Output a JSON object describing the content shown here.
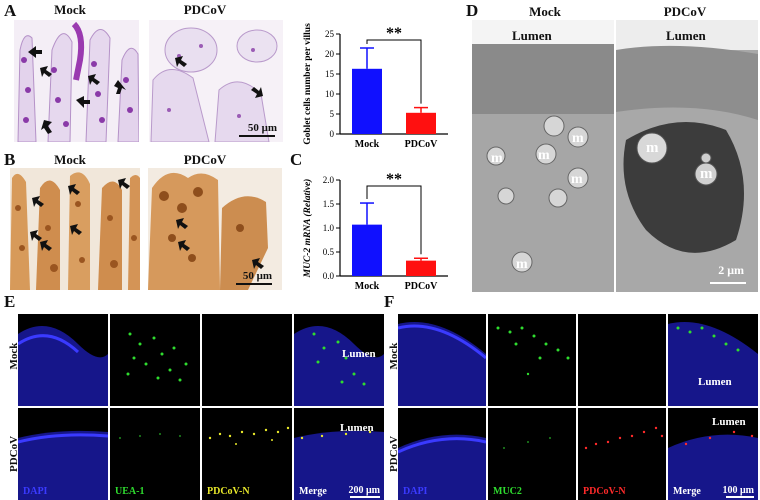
{
  "panels": {
    "A": {
      "label": "A",
      "headers": [
        "Mock",
        "PDCoV"
      ],
      "scale_bar": "50 μm"
    },
    "A_chart": {
      "ylabel": "Goblet cells number per villus",
      "significance": "**"
    },
    "B": {
      "label": "B",
      "headers": [
        "Mock",
        "PDCoV"
      ],
      "scale_bar": "50 μm"
    },
    "C": {
      "label": "C",
      "ylabel": "MUC-2 mRNA (Relative)",
      "significance": "**"
    },
    "D": {
      "label": "D",
      "headers": [
        "Mock",
        "PDCoV"
      ],
      "lumen": "Lumen",
      "m_label": "m",
      "scale_bar": "2 μm"
    },
    "E": {
      "label": "E",
      "rows": [
        "Mock",
        "PDCoV"
      ],
      "channels": [
        "DAPI",
        "UEA-1",
        "PDCoV-N",
        "Merge"
      ],
      "lumen": "Lumen",
      "scale_bar": "200 μm"
    },
    "F": {
      "label": "F",
      "rows": [
        "Mock",
        "PDCoV"
      ],
      "channels": [
        "DAPI",
        "MUC2",
        "PDCoV-N",
        "Merge"
      ],
      "lumen": "Lumen",
      "scale_bar": "100 μm"
    }
  },
  "colors": {
    "mock_bar": "#1010ff",
    "pdcov_bar": "#ff1010",
    "dapi": "#3a3aff",
    "green": "#2fdc2f",
    "yellow": "#e8e82a",
    "red": "#ff2a2a"
  },
  "chart_data": [
    {
      "type": "bar",
      "categories": [
        "Mock",
        "PDCoV"
      ],
      "values": [
        16.3,
        5.3
      ],
      "errors": [
        5.2,
        1.3
      ],
      "ylabel": "Goblet cells number per villus",
      "ylim": [
        0,
        25
      ],
      "yticks": [
        0,
        5,
        10,
        15,
        20,
        25
      ],
      "significance": "**"
    },
    {
      "type": "bar",
      "categories": [
        "Mock",
        "PDCoV"
      ],
      "values": [
        1.07,
        0.32
      ],
      "errors": [
        0.45,
        0.05
      ],
      "ylabel": "MUC-2 mRNA (Relative)",
      "ylim": [
        0,
        2.0
      ],
      "yticks": [
        0.0,
        0.5,
        1.0,
        1.5,
        2.0
      ],
      "significance": "**"
    }
  ]
}
